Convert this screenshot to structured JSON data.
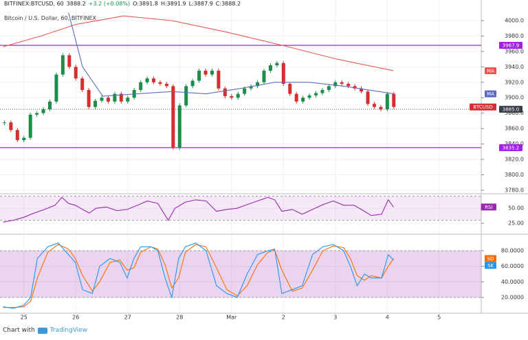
{
  "header": {
    "symbol": "BITFINEX:BTCUSD, 60",
    "last": "3888.2",
    "change": "+3.2 (+0.08%)",
    "open": "O:3891.8",
    "high": "H:3891.9",
    "low": "L:3887.9",
    "close": "C:3888.2"
  },
  "footer": {
    "text": "Chart with",
    "brand": "TradingView"
  },
  "chart_data": [
    {
      "type": "candlestick",
      "subtitle": "Bitcoin / U.S. Dollar, 60, BITFINEX",
      "xlim": [
        -0.46,
        8.81
      ],
      "ylim": [
        3776.4,
        4026.7
      ],
      "grid": true,
      "yticks": [
        {
          "value": 3780,
          "label": "3780.0"
        },
        {
          "value": 3800,
          "label": "3800.0"
        },
        {
          "value": 3820,
          "label": "3820.0"
        },
        {
          "value": 3840,
          "label": "3840.0"
        },
        {
          "value": 3860,
          "label": "3860.0"
        },
        {
          "value": 3880,
          "label": "3880.0"
        },
        {
          "value": 3900,
          "label": "3900.0"
        },
        {
          "value": 3920,
          "label": "3920.0"
        },
        {
          "value": 3940,
          "label": "3940.0"
        },
        {
          "value": 3960,
          "label": "3960.0"
        },
        {
          "value": 3980,
          "label": "3980.0"
        },
        {
          "value": 4000,
          "label": "4000.0"
        }
      ],
      "levels": [
        3967.9,
        3835.2
      ],
      "level_color": "#a41fe0",
      "price_line": {
        "value": 3885,
        "label": "3885.0"
      },
      "series": [
        {
          "name": "BTCUSD",
          "type": "candlestick",
          "color": "#d32f2f",
          "up_color": "#1b8f4a",
          "down_color": "#d32f2f",
          "x": [
            -0.375,
            -0.25,
            -0.125,
            0,
            0.125,
            0.25,
            0.375,
            0.5,
            0.625,
            0.75,
            0.875,
            1,
            1.125,
            1.25,
            1.375,
            1.5,
            1.625,
            1.75,
            1.875,
            2,
            2.125,
            2.25,
            2.375,
            2.5,
            2.625,
            2.75,
            2.875,
            3,
            3.125,
            3.25,
            3.375,
            3.5,
            3.625,
            3.75,
            3.875,
            4,
            4.125,
            4.25,
            4.375,
            4.5,
            4.625,
            4.75,
            4.875,
            5,
            5.125,
            5.25,
            5.375,
            5.5,
            5.625,
            5.75,
            5.875,
            6,
            6.125,
            6.25,
            6.375,
            6.5,
            6.625,
            6.75,
            6.875,
            7,
            7.125
          ],
          "values": [
            3868,
            3858,
            3845,
            3848,
            3878,
            3880,
            3885,
            3895,
            3930,
            3955,
            3940,
            3925,
            3910,
            3888,
            3896,
            3900,
            3895,
            3905,
            3895,
            3900,
            3910,
            3920,
            3925,
            3920,
            3918,
            3915,
            3835,
            3890,
            3915,
            3922,
            3935,
            3930,
            3935,
            3912,
            3902,
            3900,
            3905,
            3912,
            3915,
            3920,
            3935,
            3942,
            3945,
            3918,
            3905,
            3895,
            3900,
            3903,
            3906,
            3910,
            3915,
            3920,
            3918,
            3915,
            3912,
            3908,
            3892,
            3888,
            3885,
            3905,
            3888
          ]
        },
        {
          "name": "MA",
          "type": "line",
          "color": "#ef5350",
          "x": [
            -0.4,
            0.33,
            1,
            1.92,
            2.85,
            3.91,
            4.97,
            6.03,
            7.12
          ],
          "values": [
            3966,
            3980,
            3995,
            4006,
            4000,
            3985,
            3968,
            3950,
            3935
          ]
        },
        {
          "name": "MA",
          "type": "line",
          "color": "#5c6bc0",
          "x": [
            0.86,
            1.13,
            1.52,
            2.19,
            2.85,
            3.51,
            4.17,
            4.83,
            5.5,
            6.16,
            7.12
          ],
          "values": [
            4010,
            3940,
            3902,
            3905,
            3908,
            3905,
            3912,
            3920,
            3920,
            3915,
            3905
          ]
        }
      ]
    },
    {
      "type": "line",
      "xlim": [
        -0.46,
        8.81
      ],
      "ylim": [
        8,
        73
      ],
      "grid": true,
      "band": [
        30,
        70
      ],
      "band_color": "#9c27b0",
      "yticks": [
        {
          "value": 25,
          "label": "25.00"
        },
        {
          "value": 50,
          "label": "50.00"
        }
      ],
      "series": [
        {
          "name": "RSI",
          "color": "#9c27b0",
          "x": [
            -0.4,
            -0.2,
            0,
            0.2,
            0.4,
            0.6,
            0.73,
            0.86,
            0.99,
            1.13,
            1.26,
            1.39,
            1.59,
            1.79,
            1.99,
            2.19,
            2.38,
            2.58,
            2.78,
            2.91,
            3.11,
            3.31,
            3.51,
            3.71,
            3.91,
            4.11,
            4.3,
            4.5,
            4.7,
            4.83,
            4.97,
            5.17,
            5.36,
            5.56,
            5.76,
            5.96,
            6.16,
            6.36,
            6.56,
            6.69,
            6.89,
            7.02,
            7.12
          ],
          "values": [
            27,
            30,
            35,
            42,
            48,
            55,
            68,
            58,
            55,
            48,
            42,
            50,
            52,
            46,
            48,
            55,
            62,
            58,
            30,
            50,
            60,
            64,
            62,
            45,
            48,
            50,
            56,
            62,
            68,
            64,
            45,
            48,
            40,
            48,
            56,
            62,
            55,
            55,
            45,
            38,
            40,
            64,
            52
          ]
        }
      ]
    },
    {
      "type": "line",
      "xlim": [
        -0.46,
        8.81
      ],
      "ylim": [
        0.6,
        99.4
      ],
      "grid": true,
      "band": [
        20,
        80
      ],
      "band_color": "#9c27b0",
      "yticks": [
        {
          "value": 20,
          "label": "20.0000"
        },
        {
          "value": 40,
          "label": "40.0000"
        },
        {
          "value": 60,
          "label": "60.0000"
        },
        {
          "value": 80,
          "label": "80.0000"
        }
      ],
      "xticks": [
        {
          "value": 0,
          "label": "25"
        },
        {
          "value": 1,
          "label": "26"
        },
        {
          "value": 2,
          "label": "27"
        },
        {
          "value": 3,
          "label": "28"
        },
        {
          "value": 4,
          "label": "Mar"
        },
        {
          "value": 5,
          "label": "2"
        },
        {
          "value": 6,
          "label": "3"
        },
        {
          "value": 7,
          "label": "4"
        },
        {
          "value": 8,
          "label": "5"
        }
      ],
      "series": [
        {
          "name": "SD",
          "color": "#ff6d00",
          "x": [
            -0.4,
            -0.2,
            0,
            0.13,
            0.26,
            0.46,
            0.66,
            0.86,
            0.99,
            1.13,
            1.32,
            1.46,
            1.66,
            1.85,
            1.99,
            2.12,
            2.25,
            2.45,
            2.58,
            2.72,
            2.85,
            2.98,
            3.11,
            3.31,
            3.51,
            3.71,
            3.91,
            4.11,
            4.3,
            4.5,
            4.7,
            4.83,
            4.97,
            5.17,
            5.36,
            5.56,
            5.76,
            5.96,
            6.16,
            6.29,
            6.42,
            6.56,
            6.69,
            6.89,
            7.02,
            7.12
          ],
          "values": [
            7,
            7,
            8,
            15,
            45,
            78,
            88,
            82,
            70,
            48,
            28,
            40,
            65,
            68,
            55,
            58,
            78,
            85,
            82,
            62,
            32,
            45,
            78,
            88,
            85,
            58,
            30,
            22,
            35,
            62,
            78,
            81,
            55,
            28,
            32,
            55,
            80,
            86,
            84,
            70,
            48,
            42,
            48,
            45,
            60,
            70
          ]
        },
        {
          "name": "SK",
          "color": "#2196f3",
          "x": [
            -0.4,
            -0.2,
            0,
            0.13,
            0.26,
            0.46,
            0.66,
            0.86,
            0.99,
            1.13,
            1.32,
            1.46,
            1.66,
            1.85,
            1.99,
            2.12,
            2.25,
            2.45,
            2.58,
            2.72,
            2.85,
            2.98,
            3.11,
            3.31,
            3.51,
            3.71,
            3.91,
            4.11,
            4.3,
            4.5,
            4.7,
            4.83,
            4.97,
            5.17,
            5.36,
            5.56,
            5.76,
            5.96,
            6.16,
            6.29,
            6.42,
            6.56,
            6.69,
            6.89,
            7.02,
            7.12
          ],
          "values": [
            8,
            6,
            10,
            20,
            70,
            85,
            90,
            75,
            65,
            30,
            25,
            60,
            70,
            65,
            45,
            70,
            85,
            85,
            80,
            45,
            20,
            70,
            85,
            90,
            80,
            35,
            25,
            20,
            50,
            75,
            80,
            82,
            25,
            30,
            35,
            75,
            85,
            88,
            80,
            60,
            35,
            50,
            45,
            45,
            75,
            68
          ]
        }
      ]
    }
  ]
}
